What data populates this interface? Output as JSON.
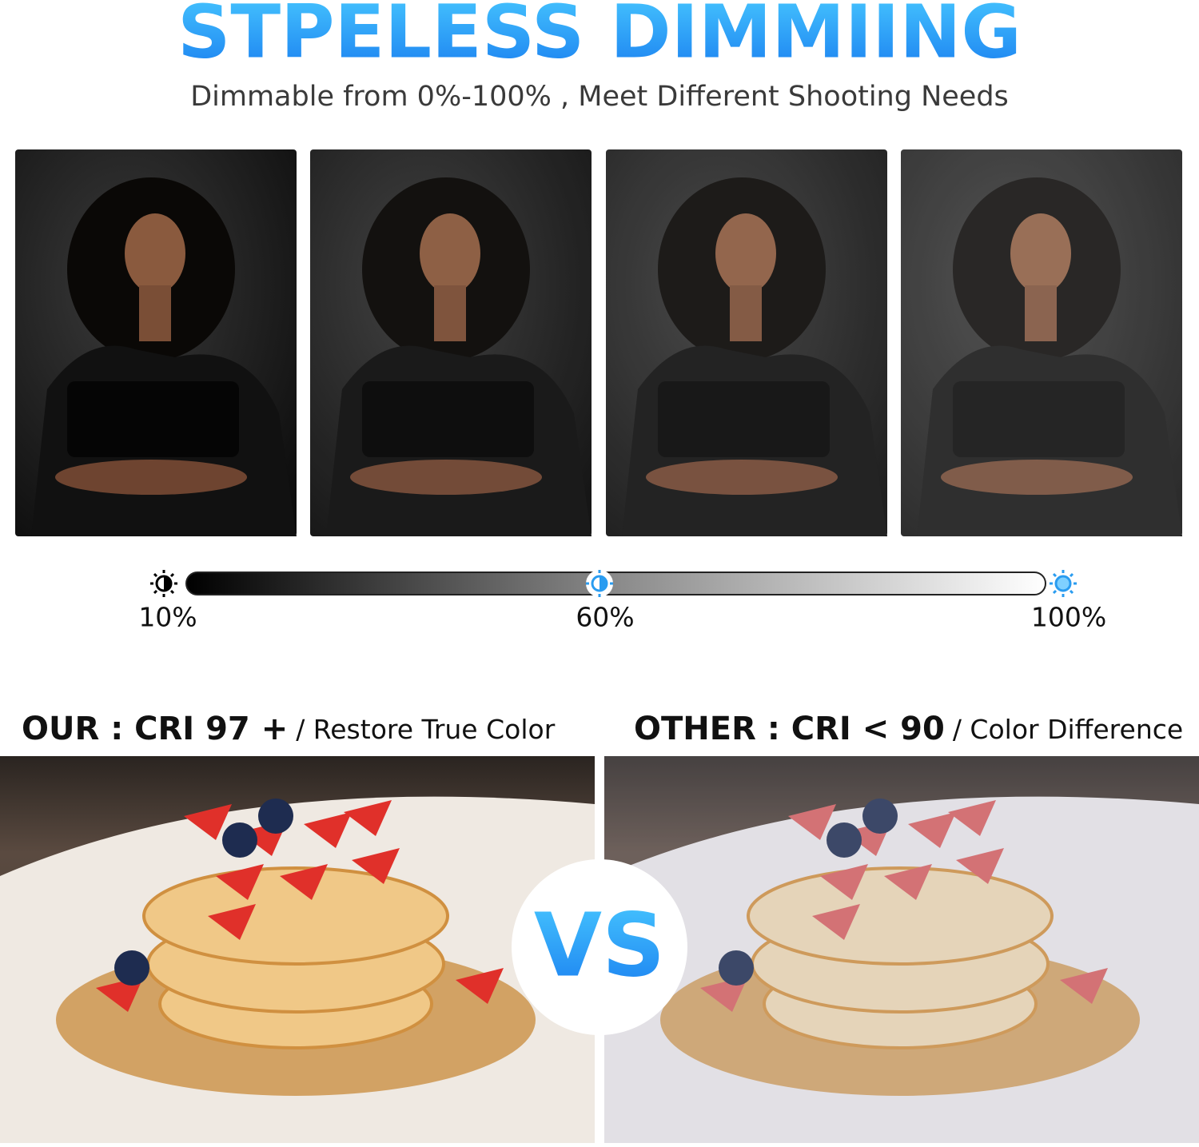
{
  "header": {
    "title": "STPELESS DIMMIING",
    "subtitle": "Dimmable from 0%-100% , Meet Different Shooting Needs"
  },
  "slider": {
    "labels": [
      "10%",
      "60%",
      "100%"
    ]
  },
  "comparison": {
    "left": {
      "heading": "OUR : CRI 97 +",
      "caption": "/ Restore True Color"
    },
    "right": {
      "heading": "OTHER : CRI < 90",
      "caption": "/ Color Difference"
    },
    "vs": "VS"
  }
}
